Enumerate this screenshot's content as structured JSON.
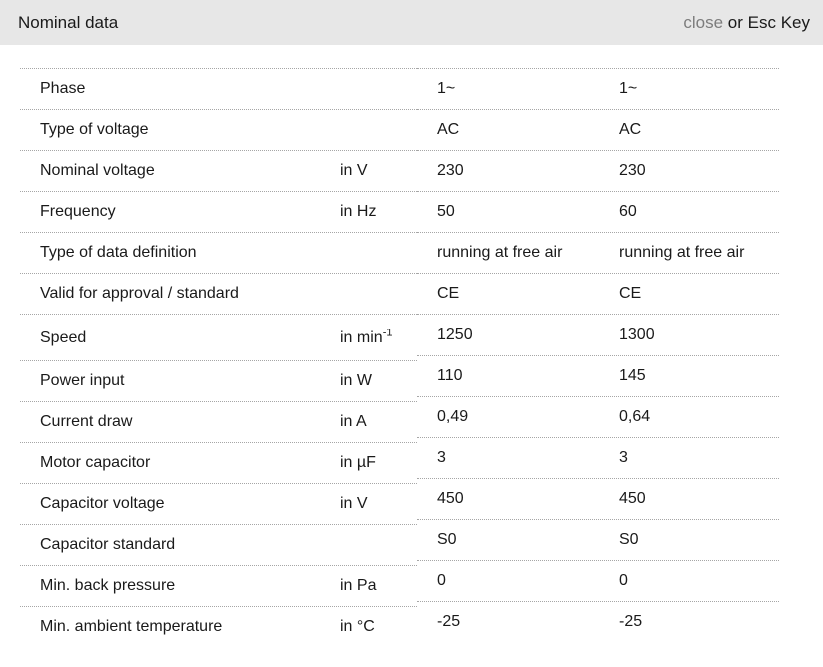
{
  "header": {
    "title": "Nominal data",
    "close_label": "close",
    "close_suffix": " or Esc Key"
  },
  "colors": {
    "header_bg": "#e7e7e7",
    "close_link": "#7d7d7d",
    "row_border": "#a6a6a6",
    "text": "#1a1a1a"
  },
  "table": {
    "rows": [
      {
        "label": "Phase",
        "unit": "",
        "values": [
          "1~",
          "1~"
        ]
      },
      {
        "label": "Type of voltage",
        "unit": "",
        "values": [
          "AC",
          "AC"
        ]
      },
      {
        "label": "Nominal voltage",
        "unit": "in V",
        "values": [
          "230",
          "230"
        ]
      },
      {
        "label": "Frequency",
        "unit": "in Hz",
        "values": [
          "50",
          "60"
        ]
      },
      {
        "label": "Type of data definition",
        "unit": "",
        "values": [
          "running at free air",
          "running at free air"
        ]
      },
      {
        "label": "Valid for approval / standard",
        "unit": "",
        "values": [
          "CE",
          "CE"
        ]
      },
      {
        "label": "Speed",
        "unit": "in min",
        "unit_sup": "-1",
        "values": [
          "1250",
          "1300"
        ]
      },
      {
        "label": "Power input",
        "unit": "in W",
        "values": [
          "110",
          "145"
        ]
      },
      {
        "label": "Current draw",
        "unit": "in A",
        "values": [
          "0,49",
          "0,64"
        ]
      },
      {
        "label": "Motor capacitor",
        "unit": "in µF",
        "values": [
          "3",
          "3"
        ]
      },
      {
        "label": "Capacitor voltage",
        "unit": "in V",
        "values": [
          "450",
          "450"
        ]
      },
      {
        "label": "Capacitor standard",
        "unit": "",
        "values": [
          "S0",
          "S0"
        ]
      },
      {
        "label": "Min. back pressure",
        "unit": "in Pa",
        "values": [
          "0",
          "0"
        ]
      },
      {
        "label": "Min. ambient temperature",
        "unit": "in °C",
        "values": [
          "-25",
          "-25"
        ]
      }
    ]
  }
}
